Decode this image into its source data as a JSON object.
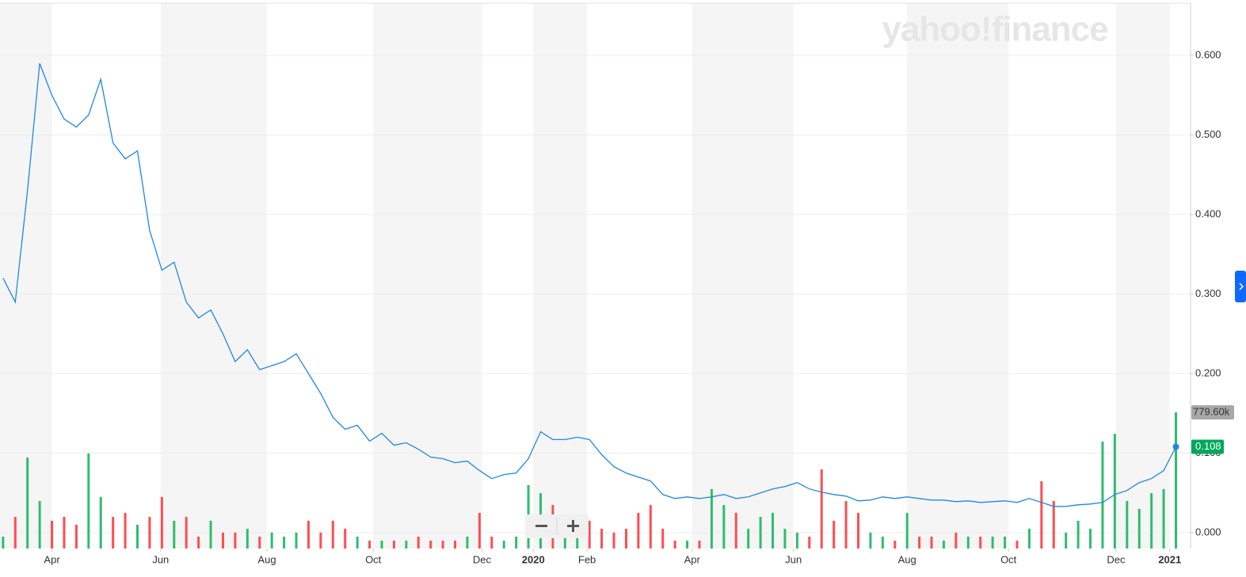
{
  "chart_data": {
    "type": "line",
    "watermark": "yahoo!finance",
    "categories": [
      null,
      null,
      null,
      null,
      null,
      null,
      null,
      null,
      null,
      null,
      null,
      null,
      null,
      null,
      null,
      null,
      null,
      null,
      null,
      null,
      null,
      null,
      null,
      null,
      null,
      null,
      null,
      null,
      null,
      null,
      null,
      null,
      null,
      null,
      null,
      null,
      null,
      null,
      null,
      null,
      null,
      null,
      null,
      null,
      null,
      null,
      null,
      null,
      null,
      null,
      null,
      null,
      null,
      null,
      null,
      null,
      null,
      null,
      null,
      null,
      null,
      null,
      null,
      null,
      null,
      null,
      null,
      null,
      null,
      null,
      null,
      null,
      null,
      null,
      null,
      null,
      null,
      null,
      null,
      null,
      null,
      null,
      null,
      null,
      null,
      null,
      null,
      null,
      null,
      null,
      null,
      null,
      null,
      null,
      null,
      null,
      null
    ],
    "series": [
      {
        "color": "#1e88e5",
        "values": [
          0.32,
          0.29,
          0.43,
          0.59,
          0.55,
          0.52,
          0.51,
          0.525,
          0.57,
          0.49,
          0.47,
          0.48,
          0.38,
          0.33,
          0.34,
          0.29,
          0.27,
          0.28,
          0.25,
          0.215,
          0.23,
          0.205,
          0.21,
          0.215,
          0.225,
          0.2,
          0.175,
          0.145,
          0.13,
          0.135,
          0.115,
          0.125,
          0.11,
          0.113,
          0.105,
          0.095,
          0.093,
          0.088,
          0.09,
          0.078,
          0.068,
          0.073,
          0.075,
          0.093,
          0.127,
          0.117,
          0.117,
          0.12,
          0.117,
          0.098,
          0.083,
          0.075,
          0.07,
          0.065,
          0.048,
          0.043,
          0.045,
          0.043,
          0.045,
          0.048,
          0.043,
          0.045,
          0.05,
          0.055,
          0.058,
          0.063,
          0.055,
          0.051,
          0.048,
          0.046,
          0.04,
          0.041,
          0.045,
          0.043,
          0.045,
          0.043,
          0.041,
          0.041,
          0.039,
          0.04,
          0.038,
          0.039,
          0.04,
          0.038,
          0.043,
          0.038,
          0.033,
          0.033,
          0.035,
          0.036,
          0.038,
          0.048,
          0.053,
          0.063,
          0.068,
          0.078,
          0.108
        ]
      }
    ],
    "volume": {
      "up_color": "#2ebd6e",
      "down_color": "#ff4d52",
      "label_color": "#a8a8a8",
      "lim": [
        0,
        779600
      ],
      "values": [
        68000,
        181000,
        521000,
        272000,
        159000,
        181000,
        136000,
        544000,
        295000,
        181000,
        204000,
        136000,
        181000,
        295000,
        159000,
        181000,
        68000,
        159000,
        91000,
        91000,
        113000,
        68000,
        91000,
        68000,
        91000,
        159000,
        91000,
        159000,
        113000,
        68000,
        45000,
        45000,
        45000,
        45000,
        68000,
        45000,
        45000,
        45000,
        68000,
        204000,
        68000,
        45000,
        68000,
        363000,
        317000,
        249000,
        113000,
        91000,
        159000,
        113000,
        91000,
        113000,
        204000,
        249000,
        113000,
        45000,
        45000,
        45000,
        340000,
        249000,
        204000,
        113000,
        181000,
        204000,
        113000,
        91000,
        68000,
        453000,
        159000,
        272000,
        204000,
        91000,
        68000,
        45000,
        204000,
        68000,
        68000,
        45000,
        91000,
        68000,
        68000,
        68000,
        68000,
        45000,
        113000,
        385000,
        272000,
        91000,
        159000,
        113000,
        612000,
        657000,
        272000,
        227000,
        317000,
        340000,
        779600
      ],
      "value_labels": [
        null,
        null,
        null,
        null,
        null,
        null,
        null,
        null,
        null,
        null,
        null,
        null,
        null,
        null,
        null,
        null,
        null,
        null,
        null,
        null,
        null,
        null,
        null,
        null,
        null,
        null,
        null,
        null,
        null,
        null,
        null,
        null,
        null,
        null,
        null,
        null,
        null,
        null,
        null,
        null,
        null,
        null,
        null,
        null,
        null,
        null,
        null,
        null,
        null,
        null,
        null,
        null,
        null,
        null,
        null,
        null,
        null,
        null,
        null,
        null,
        null,
        null,
        null,
        null,
        null,
        null,
        null,
        null,
        null,
        null,
        null,
        null,
        null,
        null,
        null,
        null,
        null,
        null,
        null,
        null,
        null,
        null,
        null,
        null,
        null,
        null,
        null,
        null,
        null,
        null,
        null,
        null,
        null,
        null,
        null,
        null,
        "779.60k"
      ]
    },
    "last_badge_color": "#00a85a",
    "xlim": [
      -0.25,
      97.2
    ],
    "xticks": [
      {
        "value": 4.0,
        "label": "Apr"
      },
      {
        "value": 12.9,
        "label": "Jun"
      },
      {
        "value": 21.6,
        "label": "Aug"
      },
      {
        "value": 30.3,
        "label": "Oct"
      },
      {
        "value": 39.2,
        "label": "Dec"
      },
      {
        "value": 43.4,
        "label": "2020"
      },
      {
        "value": 47.8,
        "label": "Feb"
      },
      {
        "value": 56.4,
        "label": "Apr"
      },
      {
        "value": 64.7,
        "label": "Jun"
      },
      {
        "value": 74.0,
        "label": "Aug"
      },
      {
        "value": 82.3,
        "label": "Oct"
      },
      {
        "value": 91.1,
        "label": "Dec"
      },
      {
        "value": 95.5,
        "label": "2021"
      }
    ],
    "ylim": [
      -0.0199,
      0.6657
    ],
    "yticks": [
      {
        "value": 0,
        "label": "0.000"
      },
      {
        "value": 0.1,
        "label": "0.100"
      },
      {
        "value": 0.2,
        "label": "0.200"
      },
      {
        "value": 0.3,
        "label": "0.300"
      },
      {
        "value": 0.4,
        "label": "0.400"
      },
      {
        "value": 0.5,
        "label": "0.500"
      },
      {
        "value": 0.6,
        "label": "0.600"
      }
    ],
    "grid": true
  }
}
